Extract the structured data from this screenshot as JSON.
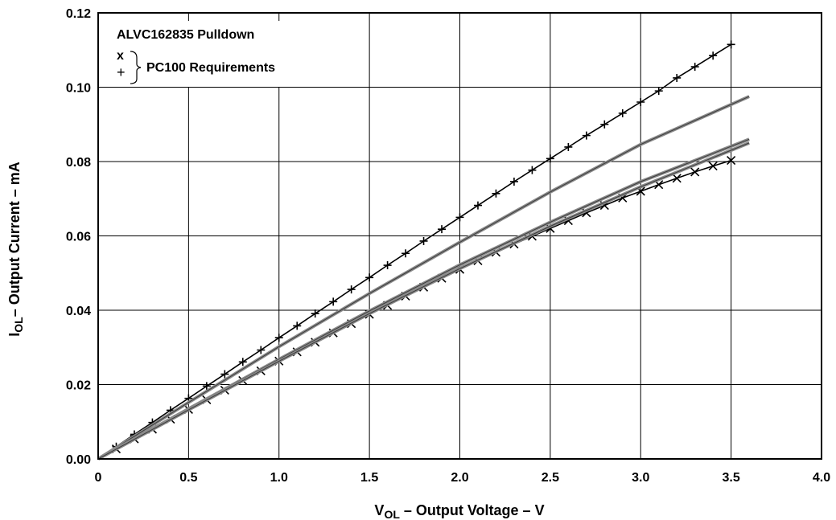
{
  "chart_data": {
    "type": "line",
    "title": "",
    "xlabel": {
      "prefix": "V",
      "subscript": "OL",
      "suffix": " – Output Voltage – V"
    },
    "ylabel": {
      "prefix": "I",
      "subscript": "OL",
      "suffix": "– Output Current – mA"
    },
    "xlim": [
      0,
      4.0
    ],
    "ylim": [
      0,
      0.12
    ],
    "x_ticks": [
      "0",
      "0.5",
      "1.0",
      "1.5",
      "2.0",
      "2.5",
      "3.0",
      "3.5",
      "4.0"
    ],
    "y_ticks": [
      "0.00",
      "0.02",
      "0.04",
      "0.06",
      "0.08",
      "0.10",
      "0.12"
    ],
    "grid": true,
    "legend": {
      "position": "top-left",
      "title": "ALVC162835 Pulldown",
      "marker_x_label": "x",
      "marker_plus_label": "+",
      "group_label": "PC100  Requirements"
    },
    "series": [
      {
        "marker": "+",
        "x": [
          0.1,
          0.2,
          0.3,
          0.4,
          0.5,
          0.6,
          0.7,
          0.8,
          0.9,
          1.0,
          1.1,
          1.2,
          1.3,
          1.4,
          1.5,
          1.6,
          1.7,
          1.8,
          1.9,
          2.0,
          2.1,
          2.2,
          2.3,
          2.4,
          2.5,
          2.6,
          2.7,
          2.8,
          2.9,
          3.0,
          3.1,
          3.2,
          3.3,
          3.4,
          3.5
        ],
        "values": [
          0.0033,
          0.0066,
          0.0098,
          0.0131,
          0.0163,
          0.0196,
          0.0228,
          0.0261,
          0.0293,
          0.0326,
          0.0358,
          0.0391,
          0.0423,
          0.0456,
          0.0488,
          0.0521,
          0.0553,
          0.0586,
          0.0618,
          0.065,
          0.0682,
          0.0714,
          0.0746,
          0.0777,
          0.0808,
          0.0839,
          0.087,
          0.09,
          0.093,
          0.096,
          0.099,
          0.1025,
          0.1055,
          0.1085,
          0.1115
        ]
      },
      {
        "marker": "x",
        "x": [
          0.1,
          0.2,
          0.3,
          0.4,
          0.5,
          0.6,
          0.7,
          0.8,
          0.9,
          1.0,
          1.1,
          1.2,
          1.3,
          1.4,
          1.5,
          1.6,
          1.7,
          1.8,
          1.9,
          2.0,
          2.1,
          2.2,
          2.3,
          2.4,
          2.5,
          2.6,
          2.7,
          2.8,
          2.9,
          3.0,
          3.1,
          3.2,
          3.3,
          3.4,
          3.5
        ],
        "values": [
          0.0027,
          0.0054,
          0.008,
          0.0107,
          0.0133,
          0.0159,
          0.0185,
          0.0211,
          0.0237,
          0.0263,
          0.0288,
          0.0314,
          0.0339,
          0.0364,
          0.0389,
          0.0413,
          0.0438,
          0.0462,
          0.0486,
          0.051,
          0.0533,
          0.0556,
          0.0578,
          0.0599,
          0.062,
          0.0641,
          0.0662,
          0.0682,
          0.0702,
          0.072,
          0.0738,
          0.0755,
          0.0772,
          0.0788,
          0.0803
        ]
      },
      {
        "marker": "none",
        "x": [
          0,
          0.5,
          1.0,
          1.5,
          2.0,
          2.5,
          3.0,
          3.6
        ],
        "values": [
          0,
          0.0152,
          0.0302,
          0.0445,
          0.0583,
          0.0718,
          0.0846,
          0.0975
        ]
      },
      {
        "marker": "none",
        "x": [
          0,
          0.5,
          1.0,
          1.5,
          2.0,
          2.5,
          3.0,
          3.6
        ],
        "values": [
          0,
          0.0135,
          0.0268,
          0.0398,
          0.0522,
          0.0637,
          0.0746,
          0.086
        ]
      },
      {
        "marker": "none",
        "x": [
          0,
          0.5,
          1.0,
          1.5,
          2.0,
          2.5,
          3.0,
          3.6
        ],
        "values": [
          0,
          0.0132,
          0.0263,
          0.0391,
          0.0512,
          0.0626,
          0.0732,
          0.085
        ]
      }
    ]
  }
}
